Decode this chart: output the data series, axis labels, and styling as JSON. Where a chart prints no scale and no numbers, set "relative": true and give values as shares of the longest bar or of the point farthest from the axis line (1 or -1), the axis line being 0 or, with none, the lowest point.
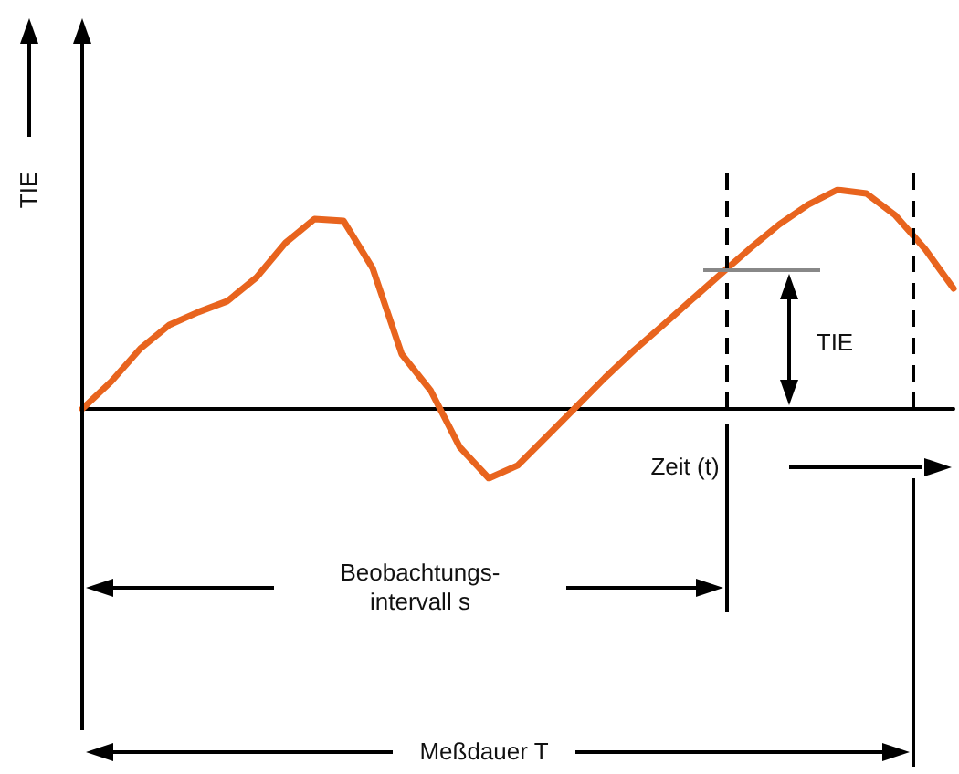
{
  "chart_data": {
    "type": "line",
    "relative": true,
    "ylabel": "TIE",
    "xlabel": "Zeit (t)",
    "marker": "none",
    "grid": false,
    "categories": [
      null,
      null,
      null,
      null,
      null,
      null,
      null,
      null,
      null,
      null,
      null,
      null,
      null,
      null,
      null,
      null,
      null,
      null,
      null,
      null,
      null,
      null,
      null,
      null,
      null,
      null,
      null,
      null,
      null,
      null,
      null
    ],
    "series": [
      {
        "color": "#e8641e",
        "values": [
          0,
          0.125,
          0.275,
          0.383,
          0.442,
          0.492,
          0.6,
          0.758,
          0.867,
          0.858,
          0.642,
          0.25,
          0.083,
          -0.175,
          -0.317,
          -0.258,
          -0.125,
          0.008,
          0.142,
          0.267,
          0.383,
          0.5,
          0.617,
          0.733,
          0.842,
          0.933,
          1,
          0.983,
          0.883,
          0.733,
          0.55
        ]
      }
    ],
    "annotations": [
      "TIE",
      "Beobachtungs-\nintervall s",
      "Meßdauer T"
    ]
  }
}
